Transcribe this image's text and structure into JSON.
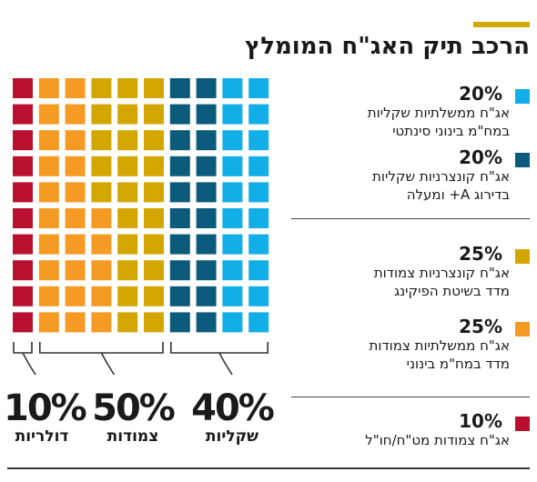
{
  "title": "הרכב תיק האג\"ח המומלץ",
  "colors": {
    "accent": "#d4a600",
    "cyan": "#12aee8",
    "navy": "#0c5b7d",
    "gold": "#d4a600",
    "orange": "#f59a23",
    "red": "#b8102e"
  },
  "chart_data": {
    "type": "waffle",
    "grid": {
      "rows": 10,
      "columns": 10
    },
    "segments": [
      {
        "value": 20,
        "label": "20%",
        "description": [
          "אג\"ח ממשלתיות שקליות",
          "במח\"מ בינוני סינתטי"
        ],
        "color": "#12aee8",
        "columns": 2
      },
      {
        "value": 20,
        "label": "20%",
        "description": [
          "אג\"ח קונצרניות שקליות",
          "בדירוג A+ ומעלה"
        ],
        "color": "#0c5b7d",
        "columns": 2
      },
      {
        "value": 25,
        "label": "25%",
        "description": [
          "אג\"ח קונצרניות צמודות",
          "מדד בשיטת הפיקינג"
        ],
        "color": "#d4a600",
        "columns": 2.5
      },
      {
        "value": 25,
        "label": "25%",
        "description": [
          "אג\"ח ממשלתיות צמודות",
          "מדד במח\"מ בינוני"
        ],
        "color": "#f59a23",
        "columns": 2.5
      },
      {
        "value": 10,
        "label": "10%",
        "description": [
          "אג\"ח צמודות מט\"ח/חו\"ל"
        ],
        "color": "#b8102e",
        "columns": 1
      }
    ],
    "groups": [
      {
        "value": 40,
        "label": "40%",
        "name": "שקליות",
        "segments": [
          0,
          1
        ]
      },
      {
        "value": 50,
        "label": "50%",
        "name": "צמודות",
        "segments": [
          2,
          3
        ]
      },
      {
        "value": 10,
        "label": "10%",
        "name": "דולריות",
        "segments": [
          4
        ]
      }
    ]
  }
}
